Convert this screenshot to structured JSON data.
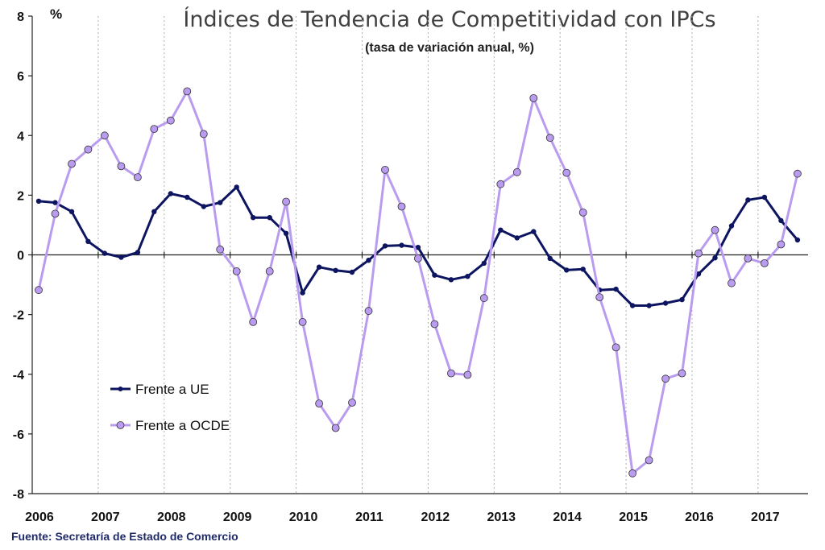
{
  "chart_data": {
    "type": "line",
    "title": "Índices de Tendencia de Competitividad con IPCs",
    "subtitle": "(tasa de variación anual, %)",
    "yunit": "%",
    "ylim": [
      -8,
      8
    ],
    "yticks": [
      -8,
      -6,
      -4,
      -2,
      0,
      2,
      4,
      6,
      8
    ],
    "year_labels": [
      "2006",
      "2007",
      "2008",
      "2009",
      "2010",
      "2011",
      "2012",
      "2013",
      "2014",
      "2015",
      "2016",
      "2017"
    ],
    "x": [
      "2006-01",
      "2006-04",
      "2006-07",
      "2006-10",
      "2007-01",
      "2007-04",
      "2007-07",
      "2007-10",
      "2008-01",
      "2008-04",
      "2008-07",
      "2008-10",
      "2009-01",
      "2009-04",
      "2009-07",
      "2009-10",
      "2010-01",
      "2010-04",
      "2010-07",
      "2010-10",
      "2011-01",
      "2011-04",
      "2011-07",
      "2011-10",
      "2012-01",
      "2012-04",
      "2012-07",
      "2012-10",
      "2013-01",
      "2013-04",
      "2013-07",
      "2013-10",
      "2014-01",
      "2014-04",
      "2014-07",
      "2014-10",
      "2015-01",
      "2015-04",
      "2015-07",
      "2015-10",
      "2016-01",
      "2016-04",
      "2016-07",
      "2016-10",
      "2017-01",
      "2017-04",
      "2017-07"
    ],
    "series": [
      {
        "name": "Frente a UE",
        "color": "#0d1460",
        "values": [
          1.8,
          1.75,
          1.45,
          0.45,
          0.05,
          -0.08,
          0.08,
          1.45,
          2.05,
          1.93,
          1.62,
          1.75,
          2.27,
          1.25,
          1.25,
          0.72,
          -1.27,
          -0.41,
          -0.52,
          -0.58,
          -0.18,
          0.3,
          0.32,
          0.25,
          -0.68,
          -0.83,
          -0.72,
          -0.28,
          0.83,
          0.57,
          0.78,
          -0.12,
          -0.51,
          -0.48,
          -1.18,
          -1.15,
          -1.7,
          -1.7,
          -1.62,
          -1.5,
          -0.64,
          -0.1,
          0.97,
          1.84,
          1.93,
          1.15,
          0.5
        ]
      },
      {
        "name": "Frente a OCDE",
        "color": "#b99cf0",
        "values": [
          -1.18,
          1.38,
          3.05,
          3.53,
          4.0,
          2.97,
          2.6,
          4.22,
          4.5,
          5.48,
          4.05,
          0.18,
          -0.55,
          -2.25,
          -0.55,
          1.78,
          -2.25,
          -4.98,
          -5.8,
          -4.95,
          -1.88,
          2.85,
          1.62,
          -0.12,
          -2.32,
          -3.97,
          -4.02,
          -1.45,
          2.37,
          2.77,
          5.25,
          3.92,
          2.75,
          1.42,
          -1.42,
          -3.1,
          -7.32,
          -6.88,
          -4.15,
          -3.97,
          0.05,
          0.83,
          -0.95,
          -0.12,
          -0.28,
          0.35,
          2.72
        ]
      }
    ],
    "legend_position": "bottom-left",
    "grid": "vertical dotted lines at each year"
  },
  "source_note": "Fuente: Secretaría de Estado de Comercio"
}
